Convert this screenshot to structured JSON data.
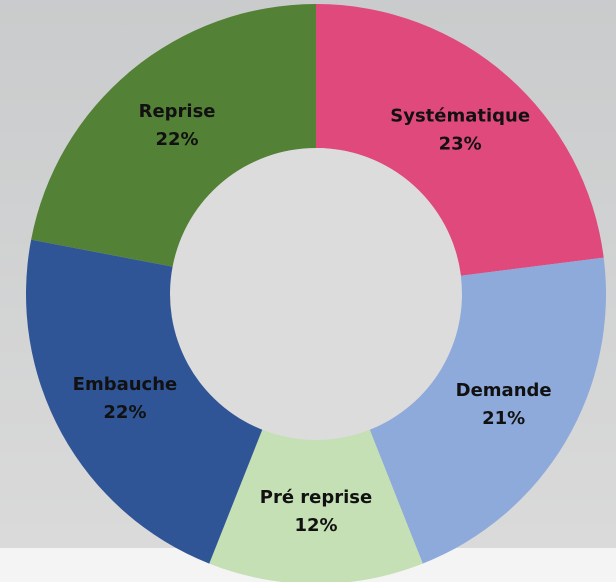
{
  "chart_data": {
    "type": "donut",
    "categories": [
      "Systématique",
      "Demande",
      "Pré reprise",
      "Embauche",
      "Reprise"
    ],
    "values": [
      23,
      21,
      12,
      22,
      22
    ],
    "value_labels": [
      "23%",
      "21%",
      "12%",
      "22%",
      "22%"
    ],
    "colors": [
      "#e0497b",
      "#8eaadb",
      "#c5e0b4",
      "#2f5597",
      "#538135"
    ]
  }
}
